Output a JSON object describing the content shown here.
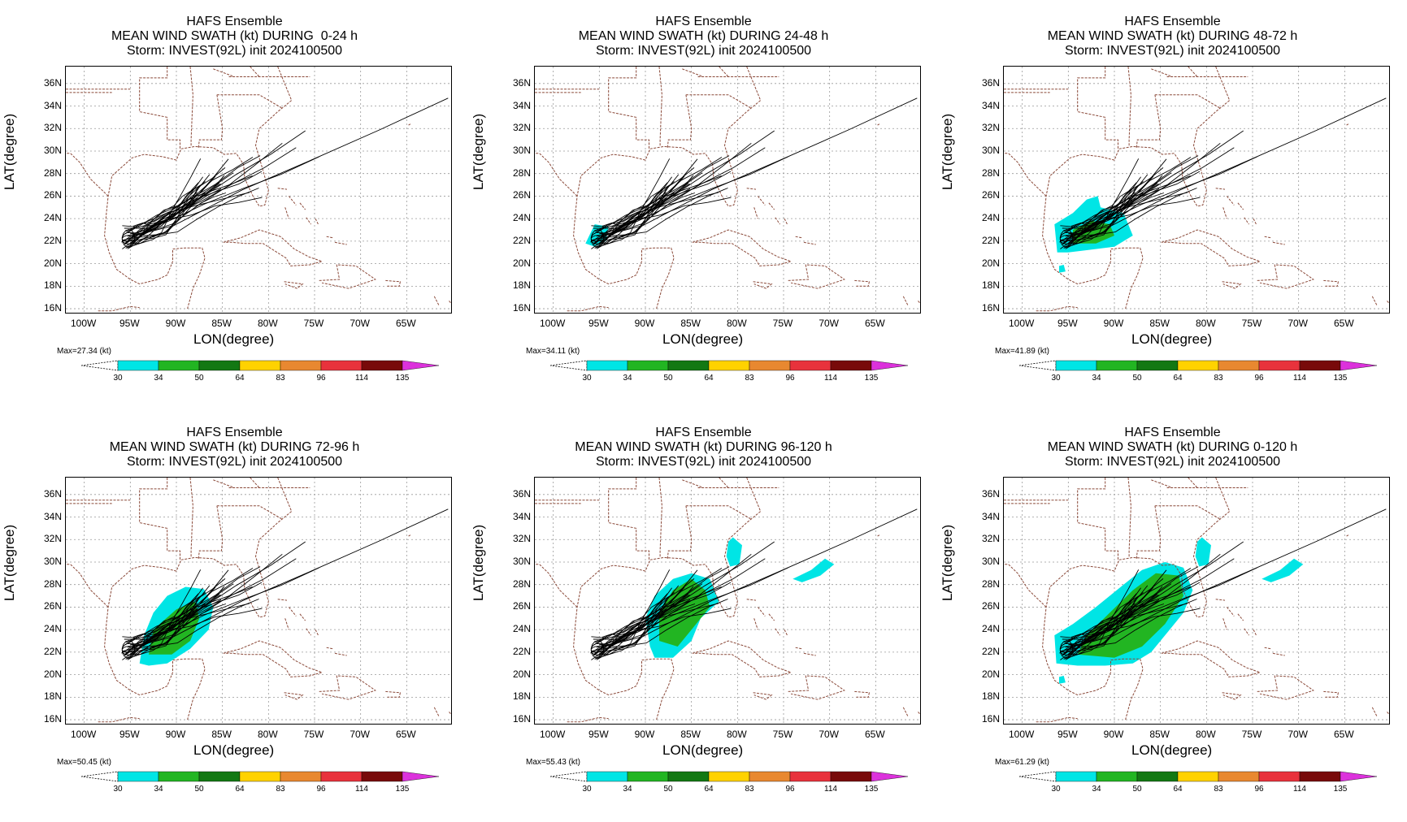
{
  "panels": [
    {
      "title_line1": "HAFS Ensemble",
      "title_line2": "MEAN WIND SWATH (kt) DURING  0-24 h",
      "title_line3": "Storm: INVEST(92L) init 2024100500",
      "max_label": "Max=27.34 (kt)",
      "swath_level": 0
    },
    {
      "title_line1": "HAFS Ensemble",
      "title_line2": "MEAN WIND SWATH (kt) DURING 24-48 h",
      "title_line3": "Storm: INVEST(92L) init 2024100500",
      "max_label": "Max=34.11 (kt)",
      "swath_level": 1
    },
    {
      "title_line1": "HAFS Ensemble",
      "title_line2": "MEAN WIND SWATH (kt) DURING 48-72 h",
      "title_line3": "Storm: INVEST(92L) init 2024100500",
      "max_label": "Max=41.89 (kt)",
      "swath_level": 2
    },
    {
      "title_line1": "HAFS Ensemble",
      "title_line2": "MEAN WIND SWATH (kt) DURING 72-96 h",
      "title_line3": "Storm: INVEST(92L) init 2024100500",
      "max_label": "Max=50.45 (kt)",
      "swath_level": 3
    },
    {
      "title_line1": "HAFS Ensemble",
      "title_line2": "MEAN WIND SWATH (kt) DURING 96-120 h",
      "title_line3": "Storm: INVEST(92L) init 2024100500",
      "max_label": "Max=55.43 (kt)",
      "swath_level": 4
    },
    {
      "title_line1": "HAFS Ensemble",
      "title_line2": "MEAN WIND SWATH (kt) DURING 0-120 h",
      "title_line3": "Storm: INVEST(92L) init 2024100500",
      "max_label": "Max=61.29 (kt)",
      "swath_level": 5
    }
  ],
  "axes": {
    "xlabel": "LON(degree)",
    "ylabel": "LAT(degree)",
    "lon_range": [
      -102,
      -60
    ],
    "lat_range": [
      15.5,
      37.5
    ],
    "xticks": [
      {
        "value": -100,
        "label": "100W"
      },
      {
        "value": -95,
        "label": "95W"
      },
      {
        "value": -90,
        "label": "90W"
      },
      {
        "value": -85,
        "label": "85W"
      },
      {
        "value": -80,
        "label": "80W"
      },
      {
        "value": -75,
        "label": "75W"
      },
      {
        "value": -70,
        "label": "70W"
      },
      {
        "value": -65,
        "label": "65W"
      }
    ],
    "yticks": [
      {
        "value": 16,
        "label": "16N"
      },
      {
        "value": 18,
        "label": "18N"
      },
      {
        "value": 20,
        "label": "20N"
      },
      {
        "value": 22,
        "label": "22N"
      },
      {
        "value": 24,
        "label": "24N"
      },
      {
        "value": 26,
        "label": "26N"
      },
      {
        "value": 28,
        "label": "28N"
      },
      {
        "value": 30,
        "label": "30N"
      },
      {
        "value": 32,
        "label": "32N"
      },
      {
        "value": 34,
        "label": "34N"
      },
      {
        "value": 36,
        "label": "36N"
      }
    ],
    "grid": true
  },
  "colorbar": {
    "labels": [
      "30",
      "34",
      "50",
      "64",
      "83",
      "96",
      "114",
      "135"
    ],
    "colors": [
      "#00e5e5",
      "#22b522",
      "#137813",
      "#ffd200",
      "#e88830",
      "#e8323c",
      "#780a0a",
      "#dc32dc"
    ]
  },
  "colors": {
    "coast": "#8b4a3a",
    "track": "#000000",
    "grid": "#999999"
  }
}
